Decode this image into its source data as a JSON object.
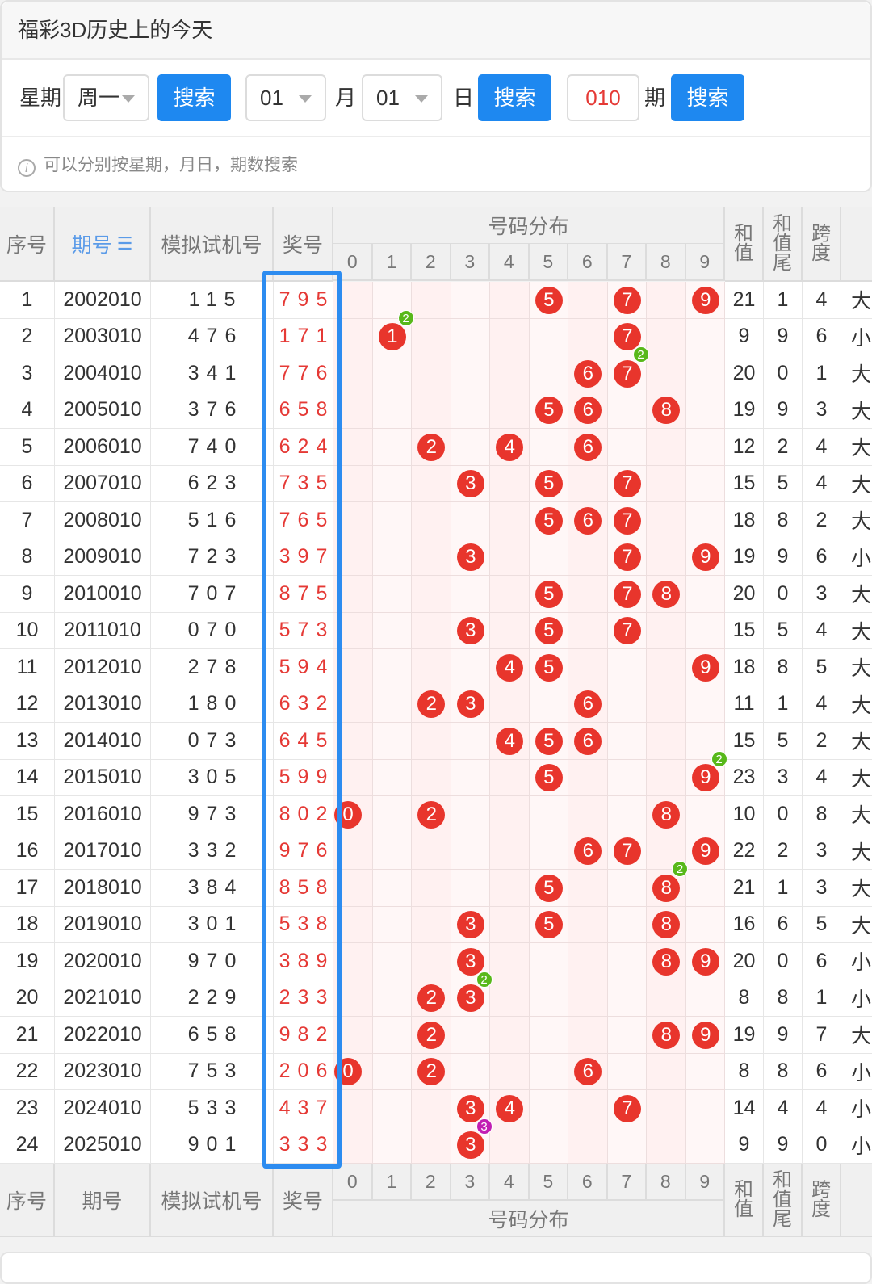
{
  "header": {
    "title": "福彩3D历史上的今天"
  },
  "search": {
    "weekday_label": "星期",
    "weekday_value": "周一",
    "search_btn": "搜索",
    "month_value": "01",
    "month_label": "月",
    "day_value": "01",
    "day_label": "日",
    "period_value": "010",
    "period_label": "期",
    "hint": "可以分别按星期，月日，期数搜索"
  },
  "table": {
    "headers": {
      "seq": "序号",
      "period": "期号",
      "period_sort_icon": "sort-icon",
      "sim": "模拟试机号",
      "win": "奖号",
      "dist": "号码分布",
      "sum": "和值",
      "sum_tail": "和值尾",
      "span": "跨度"
    },
    "digits": [
      "0",
      "1",
      "2",
      "3",
      "4",
      "5",
      "6",
      "7",
      "8",
      "9"
    ],
    "rows": [
      {
        "seq": "1",
        "period": "2002010",
        "sim": "115",
        "win": "795",
        "sum": "21",
        "tail": "1",
        "span": "4",
        "size": "大",
        "dupes": []
      },
      {
        "seq": "2",
        "period": "2003010",
        "sim": "476",
        "win": "171",
        "sum": "9",
        "tail": "9",
        "span": "6",
        "size": "小",
        "dupes": [
          {
            "d": 1,
            "n": "2"
          }
        ]
      },
      {
        "seq": "3",
        "period": "2004010",
        "sim": "341",
        "win": "776",
        "sum": "20",
        "tail": "0",
        "span": "1",
        "size": "大",
        "dupes": [
          {
            "d": 7,
            "n": "2"
          }
        ]
      },
      {
        "seq": "4",
        "period": "2005010",
        "sim": "376",
        "win": "658",
        "sum": "19",
        "tail": "9",
        "span": "3",
        "size": "大",
        "dupes": []
      },
      {
        "seq": "5",
        "period": "2006010",
        "sim": "740",
        "win": "624",
        "sum": "12",
        "tail": "2",
        "span": "4",
        "size": "大",
        "dupes": []
      },
      {
        "seq": "6",
        "period": "2007010",
        "sim": "623",
        "win": "735",
        "sum": "15",
        "tail": "5",
        "span": "4",
        "size": "大",
        "dupes": []
      },
      {
        "seq": "7",
        "period": "2008010",
        "sim": "516",
        "win": "765",
        "sum": "18",
        "tail": "8",
        "span": "2",
        "size": "大",
        "dupes": []
      },
      {
        "seq": "8",
        "period": "2009010",
        "sim": "723",
        "win": "397",
        "sum": "19",
        "tail": "9",
        "span": "6",
        "size": "小",
        "dupes": []
      },
      {
        "seq": "9",
        "period": "2010010",
        "sim": "707",
        "win": "875",
        "sum": "20",
        "tail": "0",
        "span": "3",
        "size": "大",
        "dupes": []
      },
      {
        "seq": "10",
        "period": "2011010",
        "sim": "070",
        "win": "573",
        "sum": "15",
        "tail": "5",
        "span": "4",
        "size": "大",
        "dupes": []
      },
      {
        "seq": "11",
        "period": "2012010",
        "sim": "278",
        "win": "594",
        "sum": "18",
        "tail": "8",
        "span": "5",
        "size": "大",
        "dupes": []
      },
      {
        "seq": "12",
        "period": "2013010",
        "sim": "180",
        "win": "632",
        "sum": "11",
        "tail": "1",
        "span": "4",
        "size": "大",
        "dupes": []
      },
      {
        "seq": "13",
        "period": "2014010",
        "sim": "073",
        "win": "645",
        "sum": "15",
        "tail": "5",
        "span": "2",
        "size": "大",
        "dupes": []
      },
      {
        "seq": "14",
        "period": "2015010",
        "sim": "305",
        "win": "599",
        "sum": "23",
        "tail": "3",
        "span": "4",
        "size": "大",
        "dupes": [
          {
            "d": 9,
            "n": "2"
          }
        ]
      },
      {
        "seq": "15",
        "period": "2016010",
        "sim": "973",
        "win": "802",
        "sum": "10",
        "tail": "0",
        "span": "8",
        "size": "大",
        "dupes": []
      },
      {
        "seq": "16",
        "period": "2017010",
        "sim": "332",
        "win": "976",
        "sum": "22",
        "tail": "2",
        "span": "3",
        "size": "大",
        "dupes": []
      },
      {
        "seq": "17",
        "period": "2018010",
        "sim": "384",
        "win": "858",
        "sum": "21",
        "tail": "1",
        "span": "3",
        "size": "大",
        "dupes": [
          {
            "d": 8,
            "n": "2"
          }
        ]
      },
      {
        "seq": "18",
        "period": "2019010",
        "sim": "301",
        "win": "538",
        "sum": "16",
        "tail": "6",
        "span": "5",
        "size": "大",
        "dupes": []
      },
      {
        "seq": "19",
        "period": "2020010",
        "sim": "970",
        "win": "389",
        "sum": "20",
        "tail": "0",
        "span": "6",
        "size": "小",
        "dupes": []
      },
      {
        "seq": "20",
        "period": "2021010",
        "sim": "229",
        "win": "233",
        "sum": "8",
        "tail": "8",
        "span": "1",
        "size": "小",
        "dupes": [
          {
            "d": 3,
            "n": "2"
          }
        ]
      },
      {
        "seq": "21",
        "period": "2022010",
        "sim": "658",
        "win": "982",
        "sum": "19",
        "tail": "9",
        "span": "7",
        "size": "大",
        "dupes": []
      },
      {
        "seq": "22",
        "period": "2023010",
        "sim": "753",
        "win": "206",
        "sum": "8",
        "tail": "8",
        "span": "6",
        "size": "小",
        "dupes": []
      },
      {
        "seq": "23",
        "period": "2024010",
        "sim": "533",
        "win": "437",
        "sum": "14",
        "tail": "4",
        "span": "4",
        "size": "小",
        "dupes": []
      },
      {
        "seq": "24",
        "period": "2025010",
        "sim": "901",
        "win": "333",
        "sum": "9",
        "tail": "9",
        "span": "0",
        "size": "小",
        "dupes": [
          {
            "d": 3,
            "n": "3"
          }
        ]
      }
    ]
  },
  "colors": {
    "accent": "#1e88f0",
    "ball": "#e8352c",
    "dupe2": "#58b81a",
    "dupe3": "#c21fb3",
    "win_text": "#e53935"
  }
}
